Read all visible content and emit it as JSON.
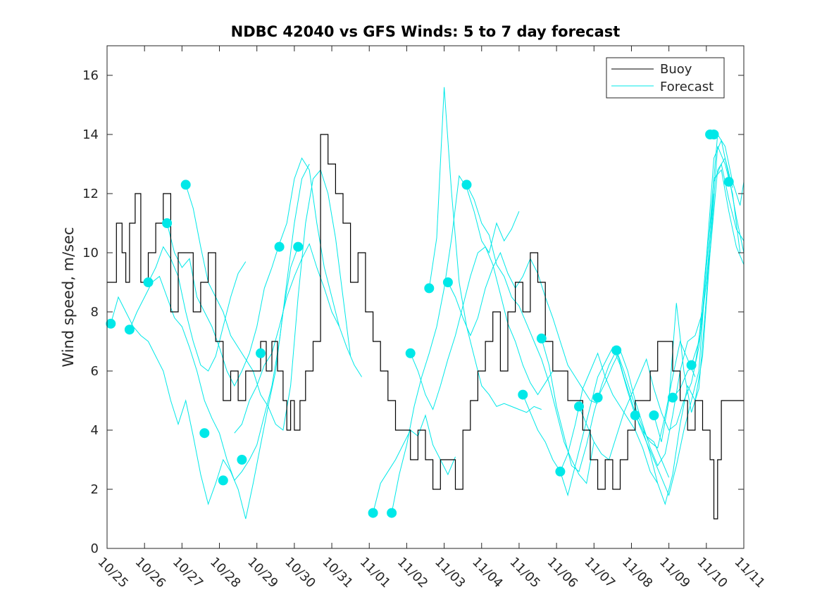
{
  "chart_data": {
    "type": "line",
    "title": "NDBC 42040 vs GFS Winds: 5 to 7 day forecast",
    "xlabel": "",
    "ylabel": "Wind speed, m/sec",
    "xlim": [
      0,
      17
    ],
    "ylim": [
      0,
      17
    ],
    "yticks": [
      0,
      2,
      4,
      6,
      8,
      10,
      12,
      14,
      16
    ],
    "x_ticks": [
      0,
      1,
      2,
      3,
      4,
      5,
      6,
      7,
      8,
      9,
      10,
      11,
      12,
      13,
      14,
      15,
      16,
      17
    ],
    "x_tick_labels": [
      "10/25",
      "10/26",
      "10/27",
      "10/28",
      "10/29",
      "10/30",
      "10/31",
      "11/01",
      "11/02",
      "11/03",
      "11/04",
      "11/05",
      "11/06",
      "11/07",
      "11/08",
      "11/09",
      "11/10",
      "11/11"
    ],
    "legend": {
      "position": "top-right",
      "entries": [
        {
          "label": "Buoy",
          "color": "#000000"
        },
        {
          "label": "Forecast",
          "color": "#00e8e8"
        }
      ]
    },
    "colors": {
      "buoy": "#000000",
      "forecast": "#00e8e8"
    },
    "buoy": {
      "name": "Buoy",
      "x": [
        0.0,
        0.25,
        0.4,
        0.5,
        0.6,
        0.75,
        0.9,
        1.1,
        1.3,
        1.5,
        1.7,
        1.9,
        2.1,
        2.3,
        2.5,
        2.7,
        2.9,
        3.1,
        3.3,
        3.5,
        3.7,
        3.9,
        4.1,
        4.25,
        4.4,
        4.55,
        4.7,
        4.8,
        4.9,
        5.0,
        5.15,
        5.3,
        5.5,
        5.7,
        5.9,
        6.1,
        6.3,
        6.5,
        6.7,
        6.9,
        7.1,
        7.3,
        7.5,
        7.7,
        7.9,
        8.1,
        8.3,
        8.5,
        8.7,
        8.9,
        9.1,
        9.3,
        9.5,
        9.7,
        9.9,
        10.1,
        10.3,
        10.5,
        10.7,
        10.9,
        11.1,
        11.3,
        11.5,
        11.7,
        11.9,
        12.1,
        12.3,
        12.5,
        12.7,
        12.9,
        13.1,
        13.3,
        13.5,
        13.7,
        13.9,
        14.1,
        14.3,
        14.5,
        14.7,
        14.9,
        15.1,
        15.3,
        15.5,
        15.7,
        15.9,
        16.1,
        16.2,
        16.3,
        16.4
      ],
      "values": [
        9,
        11,
        10,
        9,
        11,
        12,
        9,
        10,
        11,
        12,
        8,
        10,
        10,
        8,
        9,
        10,
        7,
        5,
        6,
        5,
        6,
        6,
        7,
        6,
        7,
        6,
        5,
        4,
        5,
        4,
        5,
        6,
        7,
        14,
        13,
        12,
        11,
        9,
        10,
        8,
        7,
        6,
        5,
        4,
        4,
        3,
        4,
        3,
        2,
        3,
        3,
        2,
        4,
        5,
        6,
        7,
        8,
        6,
        8,
        9,
        8,
        10,
        9,
        7,
        6,
        6,
        5,
        5,
        4,
        3,
        2,
        3,
        2,
        3,
        4,
        5,
        5,
        6,
        7,
        7,
        6,
        5,
        4,
        5,
        4,
        3,
        1,
        3,
        5
      ]
    },
    "forecast_tracks": [
      {
        "x": [
          0.1,
          0.3,
          0.5,
          0.7,
          0.9,
          1.1,
          1.3,
          1.5,
          1.7,
          1.9,
          2.1,
          2.3,
          2.5,
          2.7,
          2.9,
          3.1,
          3.3,
          3.5,
          3.7,
          3.9,
          4.1,
          4.3,
          4.5,
          4.7,
          4.9,
          5.1
        ],
        "y": [
          7.6,
          8.5,
          8.0,
          7.5,
          7.2,
          7.0,
          6.5,
          6.0,
          5.0,
          4.2,
          5.0,
          3.8,
          2.5,
          1.5,
          2.2,
          3.0,
          2.6,
          2.0,
          1.0,
          2.2,
          3.5,
          4.8,
          6.0,
          8.0,
          9.5,
          10.2
        ]
      },
      {
        "x": [
          0.6,
          0.8,
          1.0,
          1.2,
          1.4,
          1.6,
          1.8,
          2.0,
          2.2,
          2.4,
          2.6,
          2.8,
          3.0,
          3.2,
          3.4,
          3.6,
          3.8,
          4.0,
          4.2,
          4.4,
          4.6,
          4.8,
          5.0,
          5.2,
          5.4
        ],
        "y": [
          7.4,
          8.0,
          8.5,
          9.0,
          9.2,
          8.5,
          7.8,
          7.5,
          6.8,
          6.0,
          5.0,
          4.4,
          3.9,
          3.0,
          2.3,
          2.6,
          3.0,
          3.5,
          4.5,
          5.5,
          7.0,
          9.0,
          11.0,
          12.5,
          13.0
        ]
      },
      {
        "x": [
          1.1,
          1.3,
          1.5,
          1.7,
          1.9,
          2.1,
          2.3,
          2.5,
          2.7,
          2.9,
          3.1,
          3.3,
          3.5,
          3.7
        ],
        "y": [
          9.0,
          9.5,
          10.2,
          9.8,
          9.2,
          8.0,
          7.0,
          6.2,
          6.0,
          6.5,
          7.5,
          8.5,
          9.3,
          9.7
        ]
      },
      {
        "x": [
          1.6,
          1.8,
          2.0,
          2.2,
          2.4,
          2.6,
          2.8,
          3.0,
          3.2,
          3.4,
          3.6,
          3.8,
          4.0,
          4.2,
          4.4,
          4.6,
          4.8,
          5.0,
          5.2,
          5.4,
          5.6,
          5.8,
          6.0,
          6.2
        ],
        "y": [
          11.0,
          10.0,
          9.5,
          9.8,
          8.5,
          8.0,
          7.5,
          6.8,
          6.0,
          5.5,
          6.0,
          6.6,
          7.5,
          8.8,
          9.5,
          10.3,
          11.0,
          12.5,
          13.2,
          12.8,
          11.0,
          9.5,
          8.5,
          7.5
        ]
      },
      {
        "x": [
          2.1,
          2.3,
          2.5,
          2.7,
          2.9,
          3.1,
          3.3,
          3.5,
          3.7,
          3.9,
          4.1,
          4.3,
          4.5,
          4.7,
          4.9,
          5.1,
          5.3,
          5.5,
          5.7,
          5.9,
          6.1,
          6.3,
          6.5
        ],
        "y": [
          12.3,
          11.5,
          10.2,
          9.0,
          8.5,
          8.0,
          7.2,
          6.8,
          6.4,
          6.0,
          5.2,
          4.8,
          4.2,
          4.0,
          5.5,
          8.5,
          11.0,
          12.5,
          12.8,
          12.0,
          10.5,
          8.5,
          6.5
        ]
      },
      {
        "x": [
          3.4,
          3.6,
          3.8,
          4.0,
          4.2,
          4.4,
          4.6,
          4.8,
          5.0,
          5.2,
          5.4,
          5.6,
          5.8,
          6.0,
          6.2,
          6.4,
          6.6,
          6.8
        ],
        "y": [
          3.9,
          4.2,
          5.0,
          5.5,
          6.2,
          6.6,
          7.5,
          8.5,
          9.2,
          9.8,
          10.3,
          9.5,
          8.8,
          8.0,
          7.5,
          6.8,
          6.2,
          5.8
        ]
      },
      {
        "x": [
          7.1,
          7.3,
          7.5,
          7.7,
          7.9,
          8.1,
          8.3,
          8.5,
          8.7,
          8.9,
          9.1,
          9.3
        ],
        "y": [
          1.2,
          2.2,
          2.6,
          3.0,
          3.5,
          4.0,
          3.8,
          4.5,
          3.5,
          3.0,
          2.5,
          3.1
        ]
      },
      {
        "x": [
          7.6,
          7.8,
          8.0,
          8.2,
          8.4,
          8.6,
          8.8,
          9.0,
          9.2,
          9.4,
          9.6,
          9.8,
          10.0,
          10.2,
          10.4,
          10.6,
          10.8,
          11.0
        ],
        "y": [
          1.2,
          2.5,
          3.5,
          4.8,
          5.8,
          6.6,
          7.5,
          8.8,
          10.5,
          12.6,
          12.2,
          11.4,
          10.4,
          10.0,
          11.0,
          10.4,
          10.8,
          11.4
        ]
      },
      {
        "x": [
          8.1,
          8.3,
          8.5,
          8.7,
          8.9,
          9.1,
          9.3,
          9.5,
          9.7,
          9.9,
          10.1,
          10.3,
          10.5,
          10.7,
          10.9,
          11.1,
          11.3,
          11.5,
          11.7,
          11.9
        ],
        "y": [
          6.6,
          6.0,
          5.2,
          4.7,
          5.5,
          6.4,
          7.2,
          8.2,
          9.2,
          10.0,
          10.2,
          9.6,
          8.6,
          7.6,
          7.0,
          6.2,
          5.6,
          5.2,
          5.6,
          6.0
        ]
      },
      {
        "x": [
          8.6,
          8.8,
          9.0,
          9.2,
          9.4,
          9.6,
          9.8,
          10.0,
          10.2,
          10.4,
          10.6,
          10.8,
          11.0,
          11.2,
          11.4,
          11.6
        ],
        "y": [
          8.8,
          10.5,
          15.6,
          12.0,
          9.0,
          7.5,
          6.5,
          5.5,
          5.2,
          4.8,
          4.9,
          4.8,
          4.7,
          4.6,
          4.8,
          4.7
        ]
      },
      {
        "x": [
          9.1,
          9.3,
          9.5,
          9.7,
          9.9,
          10.1,
          10.3,
          10.5,
          10.7,
          10.9,
          11.1,
          11.3,
          11.5,
          11.7,
          11.9,
          12.1,
          12.3,
          12.5,
          12.7,
          12.9,
          13.1
        ],
        "y": [
          9.0,
          8.5,
          7.8,
          7.2,
          7.8,
          8.8,
          9.5,
          10.0,
          9.3,
          8.8,
          9.2,
          9.8,
          9.3,
          8.5,
          7.8,
          7.0,
          6.2,
          5.8,
          5.4,
          5.0,
          4.9
        ]
      },
      {
        "x": [
          9.6,
          9.8,
          10.0,
          10.2,
          10.4,
          10.6,
          10.8,
          11.0,
          11.2,
          11.4,
          11.6,
          11.8,
          12.0,
          12.2,
          12.4,
          12.6,
          12.8,
          13.0
        ],
        "y": [
          12.3,
          11.8,
          11.0,
          10.6,
          9.6,
          9.2,
          8.5,
          8.2,
          7.6,
          7.0,
          6.4,
          5.6,
          4.6,
          3.6,
          3.0,
          2.5,
          2.2,
          3.6
        ]
      },
      {
        "x": [
          11.1,
          11.3,
          11.5,
          11.7,
          11.9,
          12.1,
          12.3,
          12.5,
          12.7,
          12.9,
          13.1,
          13.3,
          13.5,
          13.7,
          13.9,
          14.1,
          14.3,
          14.5,
          14.7
        ],
        "y": [
          5.2,
          4.6,
          4.0,
          3.6,
          3.0,
          2.6,
          3.2,
          4.2,
          5.4,
          6.0,
          6.6,
          5.8,
          5.2,
          4.8,
          4.4,
          4.0,
          3.4,
          2.6,
          2.2
        ]
      },
      {
        "x": [
          11.6,
          11.8,
          12.0,
          12.2,
          12.4,
          12.6,
          12.8,
          13.0,
          13.2,
          13.4,
          13.6,
          13.8,
          14.0,
          14.2,
          14.4,
          14.6,
          14.8,
          15.0
        ],
        "y": [
          7.1,
          6.2,
          4.8,
          3.8,
          2.8,
          2.6,
          3.5,
          4.6,
          5.5,
          6.2,
          6.7,
          6.0,
          5.2,
          4.4,
          3.8,
          3.6,
          3.0,
          2.4
        ]
      },
      {
        "x": [
          12.1,
          12.3,
          12.5,
          12.7,
          12.9,
          13.1,
          13.3,
          13.5,
          13.7,
          13.9,
          14.1,
          14.3,
          14.5,
          14.7,
          14.9,
          15.1,
          15.3,
          15.5,
          15.7
        ],
        "y": [
          2.6,
          1.8,
          2.8,
          3.8,
          4.8,
          5.8,
          6.3,
          6.8,
          6.2,
          5.3,
          4.5,
          4.0,
          3.6,
          3.4,
          4.5,
          5.8,
          7.0,
          6.4,
          5.8
        ]
      },
      {
        "x": [
          12.6,
          12.8,
          13.0,
          13.2,
          13.4,
          13.6,
          13.8,
          14.0,
          14.2,
          14.4,
          14.6,
          14.8,
          15.0,
          15.2,
          15.4,
          15.6,
          15.8,
          16.0,
          16.2
        ],
        "y": [
          4.8,
          4.2,
          3.6,
          3.2,
          3.0,
          3.8,
          4.6,
          5.2,
          5.8,
          6.4,
          5.4,
          4.6,
          4.0,
          4.2,
          5.0,
          5.6,
          6.8,
          9.0,
          12.0
        ]
      },
      {
        "x": [
          13.1,
          13.3,
          13.5,
          13.7,
          13.9,
          14.1,
          14.3,
          14.5,
          14.7,
          14.9,
          15.1,
          15.3,
          15.5,
          15.7,
          15.9,
          16.1,
          16.3,
          16.5,
          16.7
        ],
        "y": [
          5.1,
          5.6,
          6.2,
          6.7,
          6.0,
          5.0,
          4.2,
          3.4,
          2.8,
          3.2,
          4.5,
          6.0,
          7.0,
          7.2,
          8.0,
          10.0,
          12.8,
          13.2,
          12.2
        ]
      },
      {
        "x": [
          13.6,
          13.8,
          14.0,
          14.2,
          14.4,
          14.6,
          14.8,
          15.0,
          15.2,
          15.4,
          15.6,
          15.8,
          16.0,
          16.2,
          16.4,
          16.6,
          16.8,
          17.0
        ],
        "y": [
          6.7,
          5.8,
          5.0,
          4.2,
          3.6,
          3.0,
          2.4,
          1.8,
          2.8,
          4.0,
          5.0,
          6.0,
          9.5,
          12.4,
          13.0,
          11.8,
          10.8,
          10.4
        ]
      },
      {
        "x": [
          14.1,
          14.3,
          14.5,
          14.7,
          14.9,
          15.1,
          15.3,
          15.5,
          15.7,
          15.9,
          16.1,
          16.3,
          16.5,
          16.7,
          16.9
        ],
        "y": [
          4.5,
          4.0,
          3.2,
          2.2,
          1.5,
          2.5,
          4.2,
          5.5,
          5.0,
          6.5,
          10.0,
          13.6,
          13.0,
          12.0,
          10.0
        ]
      },
      {
        "x": [
          14.6,
          14.8,
          15.0,
          15.2,
          15.4,
          15.6,
          15.8,
          16.0,
          16.2,
          16.4,
          16.6,
          16.8,
          17.0
        ],
        "y": [
          4.5,
          3.6,
          5.0,
          8.3,
          6.0,
          4.6,
          5.4,
          8.5,
          12.5,
          12.8,
          11.4,
          10.2,
          9.6
        ]
      },
      {
        "x": [
          15.1,
          15.3,
          15.5,
          15.7,
          15.9,
          16.1,
          16.3,
          16.5,
          16.7,
          16.9,
          17.0
        ],
        "y": [
          5.1,
          5.4,
          6.0,
          6.2,
          8.0,
          11.0,
          14.0,
          13.6,
          12.4,
          11.6,
          12.4
        ]
      },
      {
        "x": [
          15.6,
          15.8,
          16.0,
          16.2,
          16.4,
          16.6,
          16.8,
          17.0
        ],
        "y": [
          6.2,
          7.0,
          9.8,
          13.2,
          13.8,
          12.6,
          11.2,
          10.0
        ]
      }
    ],
    "forecast_markers": {
      "x": [
        0.1,
        0.6,
        1.1,
        1.6,
        2.1,
        2.6,
        3.1,
        3.6,
        4.1,
        4.6,
        5.1,
        7.1,
        7.6,
        8.1,
        8.6,
        9.1,
        9.6,
        11.1,
        11.6,
        12.1,
        12.6,
        13.1,
        13.6,
        14.1,
        14.6,
        15.1,
        15.6,
        16.1,
        16.2,
        16.6
      ],
      "y": [
        7.6,
        7.4,
        9.0,
        11.0,
        12.3,
        3.9,
        2.3,
        3.0,
        6.6,
        10.2,
        10.2,
        1.2,
        1.2,
        6.6,
        8.8,
        9.0,
        12.3,
        5.2,
        7.1,
        2.6,
        4.8,
        5.1,
        6.7,
        4.5,
        4.5,
        5.1,
        6.2,
        14.0,
        14.0,
        12.4
      ]
    }
  }
}
